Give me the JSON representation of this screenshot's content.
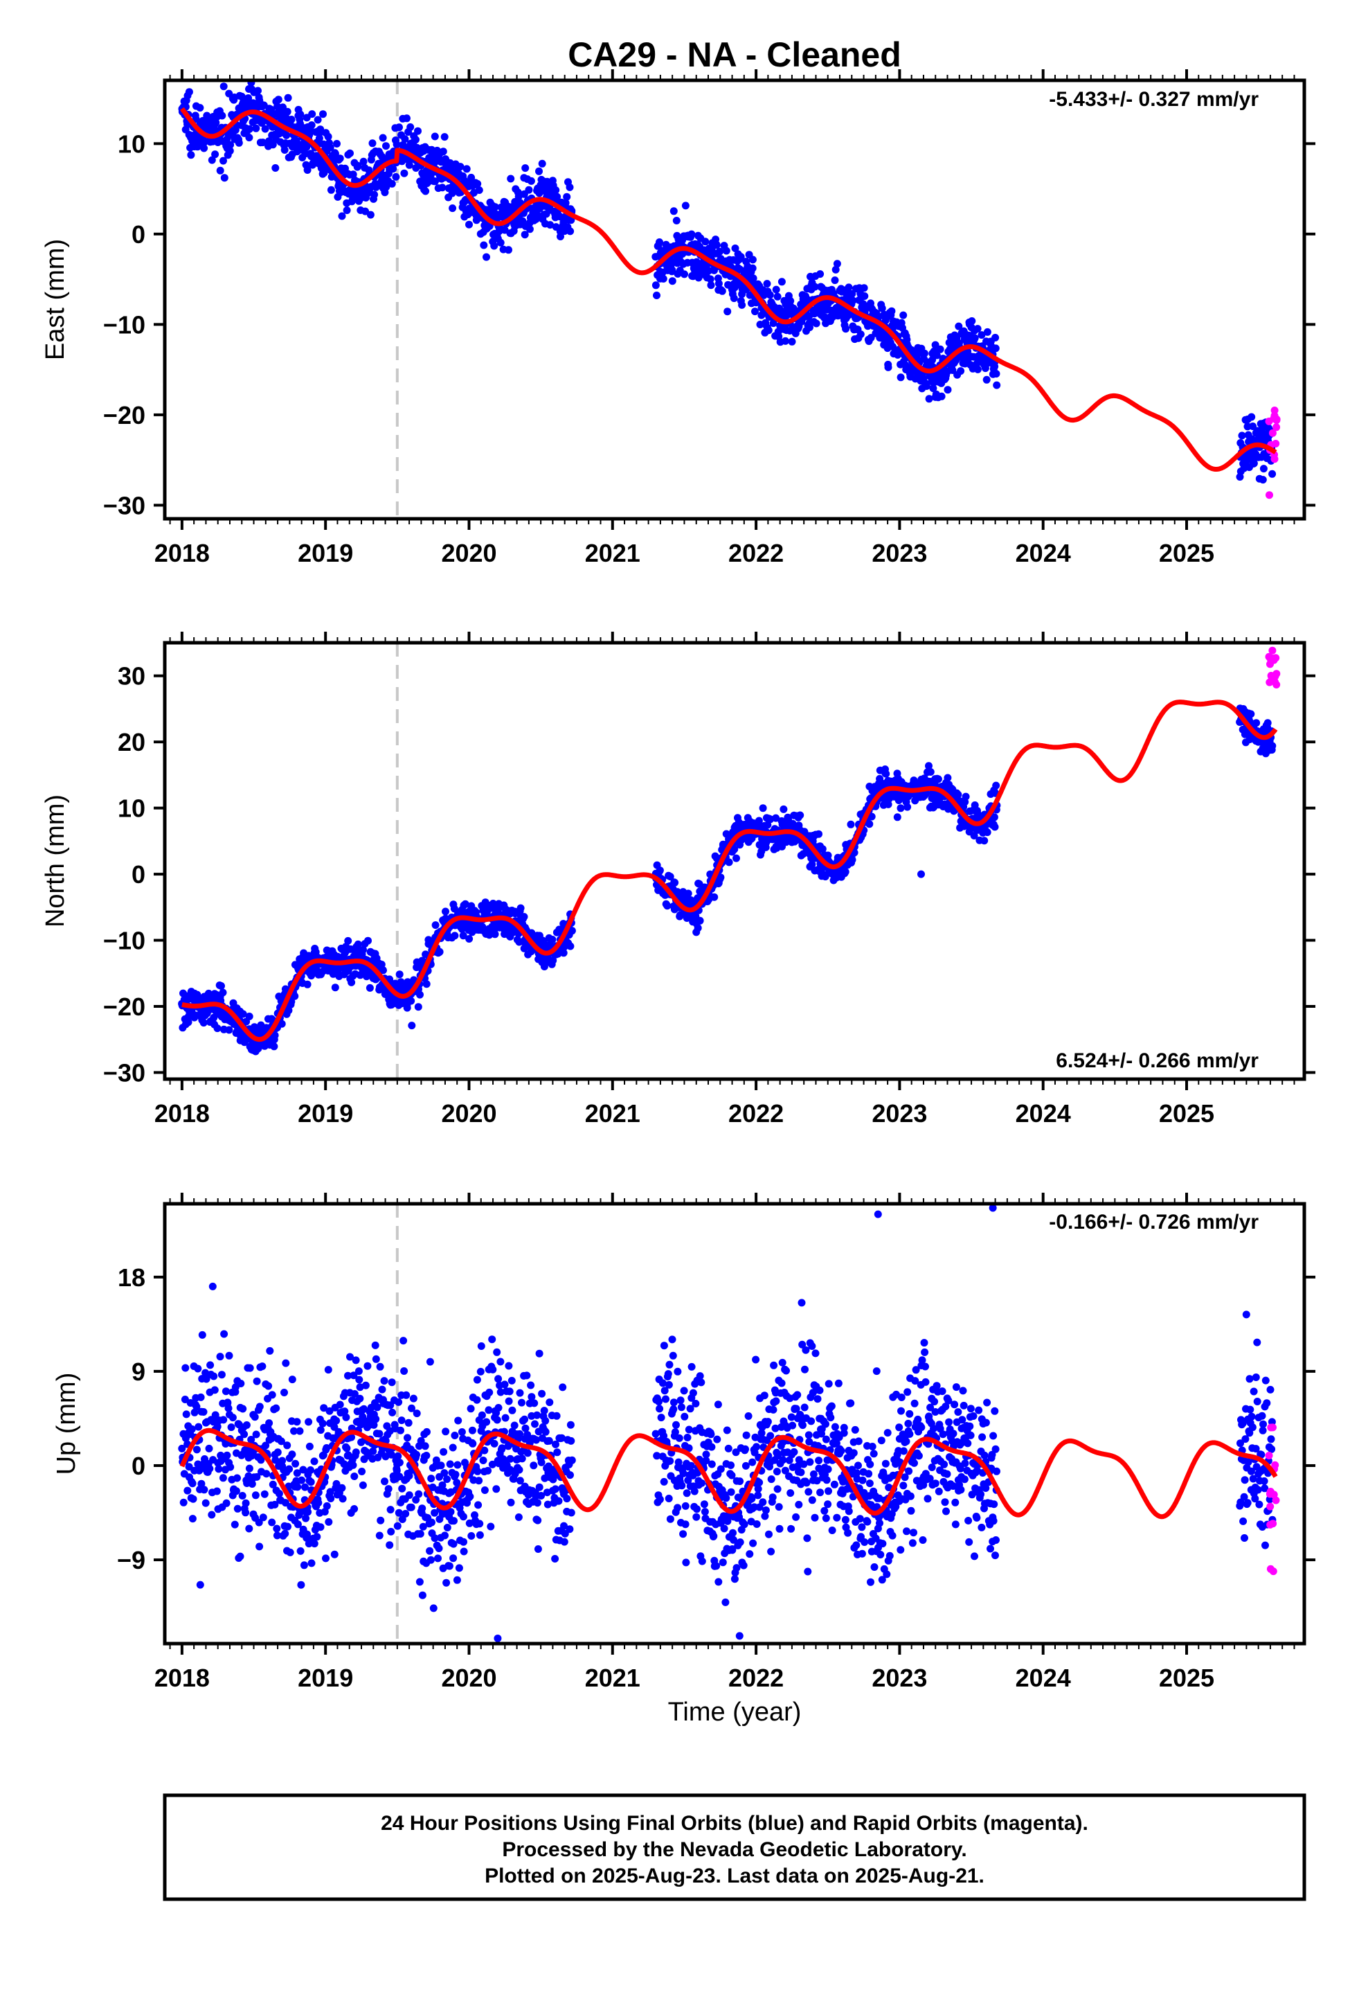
{
  "figure": {
    "title": "CA29  - NA - Cleaned",
    "xlabel": "Time (year)",
    "footer": [
      "24 Hour Positions Using Final Orbits (blue) and Rapid Orbits (magenta).",
      "Processed by the Nevada Geodetic Laboratory.",
      "Plotted on 2025-Aug-23. Last data on 2025-Aug-21."
    ],
    "colors": {
      "final_orbits": "#0000ff",
      "rapid_orbits": "#ff00ff",
      "model_fit": "#ff0000",
      "event_line": "#c8c8c8"
    }
  },
  "chart_data": [
    {
      "type": "scatter",
      "component": "east",
      "ylabel": "East (mm)",
      "rate_label": "-5.433+/- 0.327 mm/yr",
      "xlim": [
        2017.88,
        2025.82
      ],
      "ylim": [
        -31.5,
        17
      ],
      "xticks": [
        2018,
        2019,
        2020,
        2021,
        2022,
        2023,
        2024,
        2025
      ],
      "yticks": [
        -30,
        -20,
        -10,
        0,
        10
      ],
      "event_line_x": 2019.5,
      "trend": {
        "t0": 2018.0,
        "offset": 14.5,
        "slope": -5.433
      },
      "seasonal": {
        "amplitude": 2.0,
        "phase": 0.4
      },
      "step": {
        "at": 2019.5,
        "size": 1.2
      },
      "noise_sd": 1.5,
      "data_spans": [
        [
          2018.0,
          2020.72
        ],
        [
          2021.3,
          2023.68
        ],
        [
          2025.37,
          2025.6
        ]
      ],
      "model_fit_range": [
        2018.0,
        2025.62
      ],
      "rapid": {
        "x_range": [
          2025.57,
          2025.63
        ],
        "count": 14,
        "y_range": [
          -30.5,
          -19.2
        ]
      },
      "outliers": []
    },
    {
      "type": "scatter",
      "component": "north",
      "ylabel": "North (mm)",
      "rate_label": "6.524+/- 0.266 mm/yr",
      "xlim": [
        2017.88,
        2025.82
      ],
      "ylim": [
        -31,
        35
      ],
      "xticks": [
        2018,
        2019,
        2020,
        2021,
        2022,
        2023,
        2024,
        2025
      ],
      "yticks": [
        -30,
        -20,
        -10,
        0,
        10,
        20,
        30
      ],
      "event_line_x": 2019.5,
      "trend": {
        "t0": 2018.0,
        "offset": -23.0,
        "slope": 6.524
      },
      "seasonal": {
        "amplitude": 4.2,
        "phase": 0.78
      },
      "step": {
        "at": 2019.5,
        "size": 0
      },
      "noise_sd": 1.3,
      "data_spans": [
        [
          2018.0,
          2020.72
        ],
        [
          2021.3,
          2023.68
        ],
        [
          2025.37,
          2025.6
        ]
      ],
      "model_fit_range": [
        2018.0,
        2025.62
      ],
      "rapid": {
        "x_range": [
          2025.57,
          2025.63
        ],
        "count": 14,
        "y_range": [
          28.5,
          34
        ]
      },
      "outliers": [
        [
          2023.15,
          0
        ]
      ]
    },
    {
      "type": "scatter",
      "component": "up",
      "ylabel": "Up (mm)",
      "rate_label": "-0.166+/- 0.726 mm/yr",
      "xlim": [
        2017.88,
        2025.82
      ],
      "ylim": [
        -17,
        25
      ],
      "xticks": [
        2018,
        2019,
        2020,
        2021,
        2022,
        2023,
        2024,
        2025
      ],
      "yticks": [
        -9,
        0,
        9,
        18
      ],
      "event_line_x": 2019.5,
      "trend": {
        "t0": 2018.0,
        "offset": 0.5,
        "slope": -0.166
      },
      "seasonal": {
        "amplitude": 3.2,
        "phase": 0.05
      },
      "step": {
        "at": 2019.5,
        "size": 0
      },
      "noise_sd": 4.0,
      "data_spans": [
        [
          2018.0,
          2020.72
        ],
        [
          2021.3,
          2023.68
        ],
        [
          2025.37,
          2025.6
        ]
      ],
      "model_fit_range": [
        2018.0,
        2025.62
      ],
      "rapid": {
        "x_range": [
          2025.57,
          2025.63
        ],
        "count": 14,
        "y_range": [
          -10.5,
          4.5
        ]
      },
      "outliers": [
        [
          2022.85,
          24
        ],
        [
          2023.65,
          24.6
        ],
        [
          2020.2,
          -16.5
        ]
      ]
    }
  ]
}
